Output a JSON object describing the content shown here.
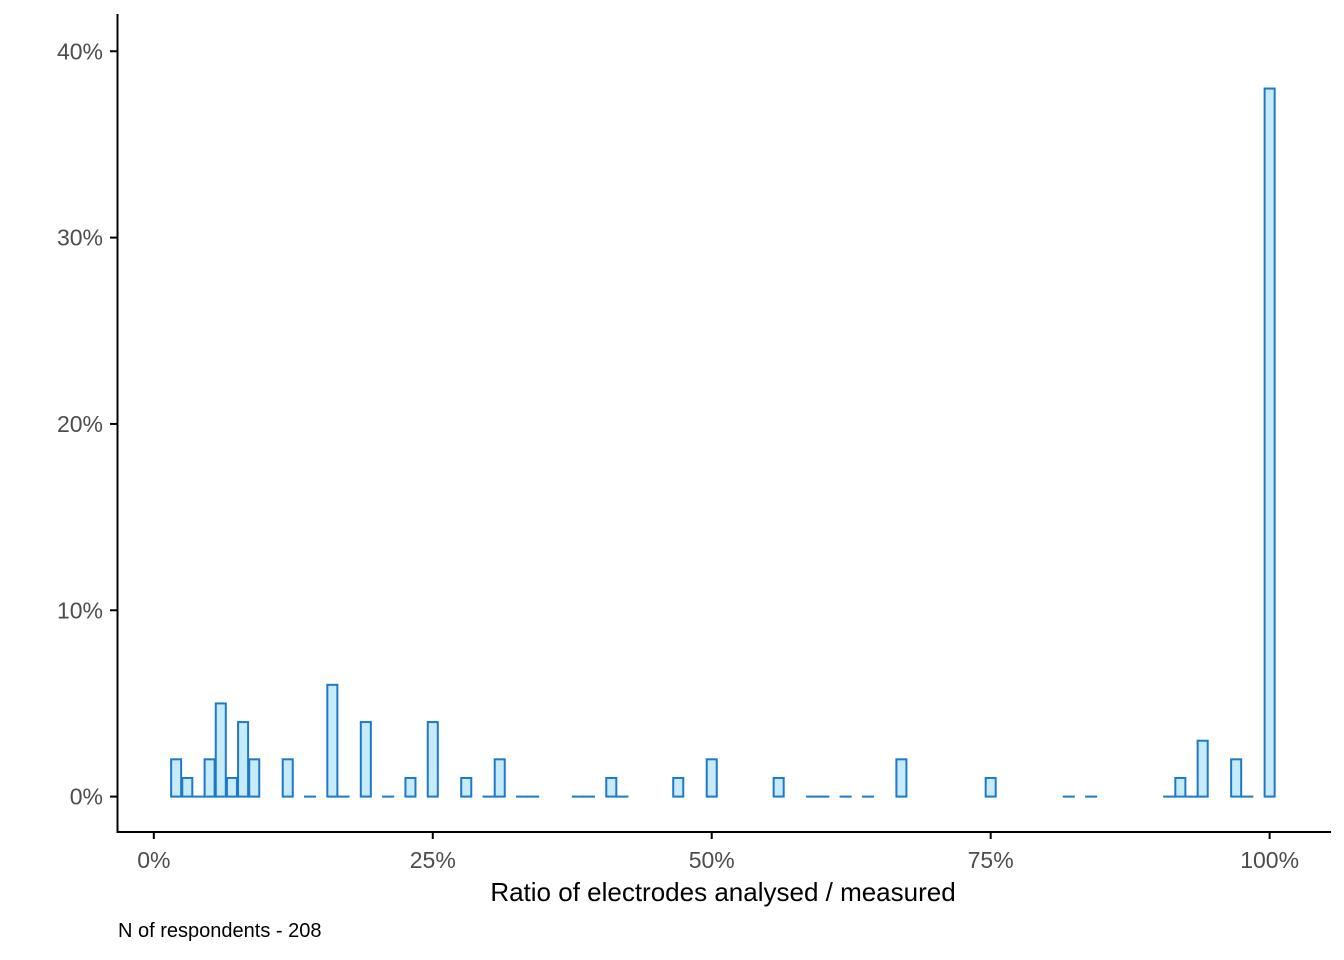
{
  "chart_data": {
    "type": "bar",
    "title": "",
    "xlabel": "Ratio of electrodes analysed / measured",
    "ylabel": "",
    "caption": "N of respondents - 208",
    "x_unit": "percent",
    "y_unit": "percent",
    "xlim": [
      -3.3,
      105.5
    ],
    "ylim": [
      -1.9,
      42.0
    ],
    "x_ticks": [
      0,
      25,
      50,
      75,
      100
    ],
    "x_tick_labels": [
      "0%",
      "25%",
      "50%",
      "75%",
      "100%"
    ],
    "y_ticks": [
      0,
      10,
      20,
      30,
      40
    ],
    "y_tick_labels": [
      "0%",
      "10%",
      "20%",
      "30%",
      "40%"
    ],
    "grid": false,
    "bin_width": 0.9,
    "bars": [
      {
        "x": 2,
        "y": 2
      },
      {
        "x": 3,
        "y": 1
      },
      {
        "x": 4,
        "y": 0
      },
      {
        "x": 5,
        "y": 2
      },
      {
        "x": 6,
        "y": 5
      },
      {
        "x": 7,
        "y": 1
      },
      {
        "x": 8,
        "y": 4
      },
      {
        "x": 9,
        "y": 2
      },
      {
        "x": 12,
        "y": 2
      },
      {
        "x": 14,
        "y": 0
      },
      {
        "x": 16,
        "y": 6
      },
      {
        "x": 17,
        "y": 0
      },
      {
        "x": 19,
        "y": 4
      },
      {
        "x": 21,
        "y": 0
      },
      {
        "x": 23,
        "y": 1
      },
      {
        "x": 25,
        "y": 4
      },
      {
        "x": 28,
        "y": 1
      },
      {
        "x": 30,
        "y": 0
      },
      {
        "x": 31,
        "y": 2
      },
      {
        "x": 33,
        "y": 0
      },
      {
        "x": 34,
        "y": 0
      },
      {
        "x": 38,
        "y": 0
      },
      {
        "x": 39,
        "y": 0
      },
      {
        "x": 41,
        "y": 1
      },
      {
        "x": 42,
        "y": 0
      },
      {
        "x": 47,
        "y": 1
      },
      {
        "x": 50,
        "y": 2
      },
      {
        "x": 56,
        "y": 1
      },
      {
        "x": 59,
        "y": 0
      },
      {
        "x": 60,
        "y": 0
      },
      {
        "x": 62,
        "y": 0
      },
      {
        "x": 64,
        "y": 0
      },
      {
        "x": 67,
        "y": 2
      },
      {
        "x": 75,
        "y": 1
      },
      {
        "x": 82,
        "y": 0
      },
      {
        "x": 84,
        "y": 0
      },
      {
        "x": 91,
        "y": 0
      },
      {
        "x": 92,
        "y": 1
      },
      {
        "x": 93,
        "y": 0
      },
      {
        "x": 94,
        "y": 3
      },
      {
        "x": 97,
        "y": 2
      },
      {
        "x": 98,
        "y": 0
      },
      {
        "x": 100,
        "y": 38
      }
    ]
  },
  "colors": {
    "bar_fill": "#c6ecfb",
    "bar_stroke": "#1f78c8",
    "axis": "#000000",
    "tick_label": "#4d4d4d"
  }
}
